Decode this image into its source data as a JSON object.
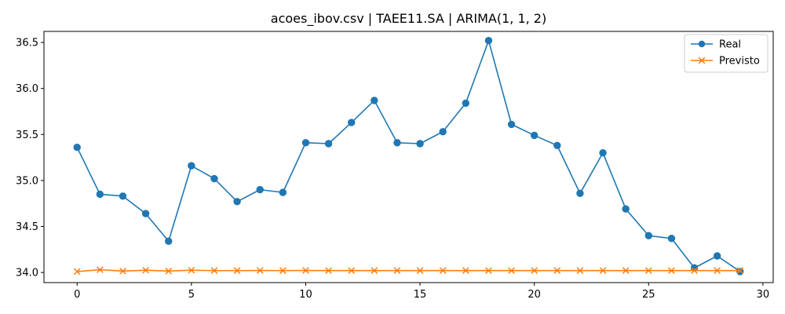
{
  "chart_data": {
    "type": "line",
    "title": "acoes_ibov.csv | TAEE11.SA | ARIMA(1, 1, 2)",
    "xlabel": "",
    "ylabel": "",
    "xlim": [
      -1.45,
      30.45
    ],
    "ylim": [
      33.89,
      36.62
    ],
    "x_ticks": [
      0,
      5,
      10,
      15,
      20,
      25,
      30
    ],
    "y_ticks": [
      34.0,
      34.5,
      35.0,
      35.5,
      36.0,
      36.5
    ],
    "x_tick_labels": [
      "0",
      "5",
      "10",
      "15",
      "20",
      "25",
      "30"
    ],
    "y_tick_labels": [
      "34.0",
      "34.5",
      "35.0",
      "35.5",
      "36.0",
      "36.5"
    ],
    "grid": false,
    "legend_position": "top-right",
    "x": [
      0,
      1,
      2,
      3,
      4,
      5,
      6,
      7,
      8,
      9,
      10,
      11,
      12,
      13,
      14,
      15,
      16,
      17,
      18,
      19,
      20,
      21,
      22,
      23,
      24,
      25,
      26,
      27,
      28,
      29
    ],
    "series": [
      {
        "name": "Real",
        "color": "#1f77b4",
        "marker": "circle",
        "values": [
          35.36,
          34.85,
          34.83,
          34.64,
          34.34,
          35.16,
          35.02,
          34.77,
          34.9,
          34.87,
          35.41,
          35.4,
          35.63,
          35.87,
          35.41,
          35.4,
          35.53,
          35.84,
          36.52,
          35.61,
          35.49,
          35.38,
          34.86,
          35.3,
          34.69,
          34.4,
          34.37,
          34.05,
          34.18,
          34.01
        ]
      },
      {
        "name": "Previsto",
        "color": "#ff7f0e",
        "marker": "x",
        "values": [
          34.01,
          34.03,
          34.015,
          34.025,
          34.015,
          34.025,
          34.02,
          34.02,
          34.022,
          34.02,
          34.022,
          34.021,
          34.021,
          34.021,
          34.021,
          34.021,
          34.021,
          34.021,
          34.021,
          34.021,
          34.021,
          34.021,
          34.021,
          34.021,
          34.021,
          34.021,
          34.021,
          34.021,
          34.021,
          34.021
        ]
      }
    ]
  }
}
